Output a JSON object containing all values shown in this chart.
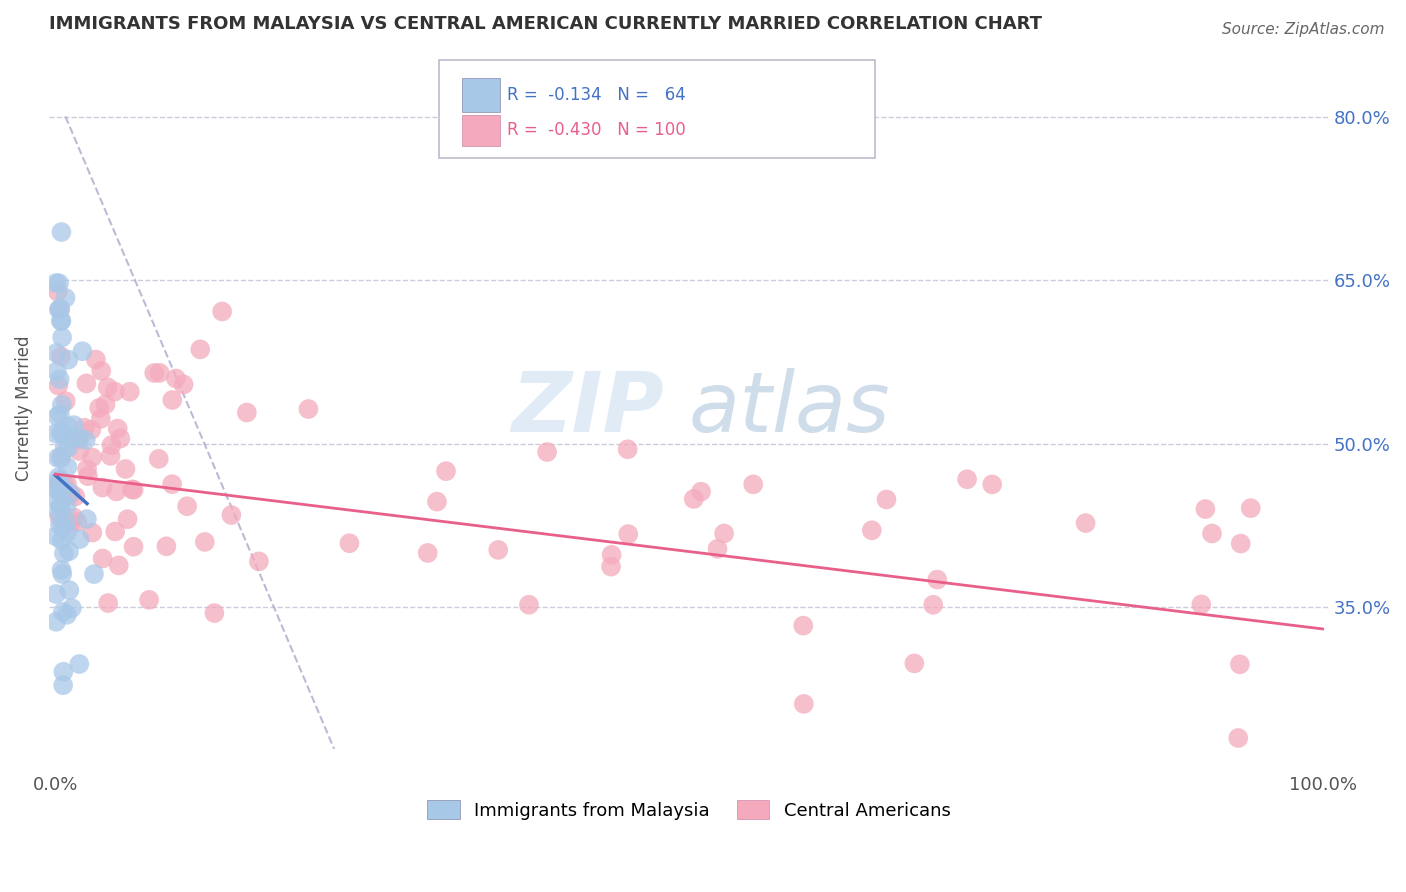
{
  "title": "IMMIGRANTS FROM MALAYSIA VS CENTRAL AMERICAN CURRENTLY MARRIED CORRELATION CHART",
  "source": "Source: ZipAtlas.com",
  "ylabel": "Currently Married",
  "ytick_values": [
    0.35,
    0.5,
    0.65,
    0.8
  ],
  "ytick_labels": [
    "35.0%",
    "50.0%",
    "65.0%",
    "80.0%"
  ],
  "xtick_labels": [
    "0.0%",
    "100.0%"
  ],
  "color_blue": "#A8C8E8",
  "color_pink": "#F4AABC",
  "line_blue": "#4472C4",
  "line_pink": "#E8608A",
  "line_dash": "#AAAACC",
  "background_color": "#FFFFFF",
  "grid_color": "#CCCCDD",
  "watermark_color": "#D8E8F4",
  "legend_text_blue": "R =  -0.134   N =   64",
  "legend_text_pink": "R =  -0.430   N = 100",
  "legend_label_blue": "Immigrants from Malaysia",
  "legend_label_pink": "Central Americans",
  "right_axis_color": "#4472C4",
  "title_color": "#333333",
  "source_color": "#666666",
  "ylabel_color": "#555555"
}
